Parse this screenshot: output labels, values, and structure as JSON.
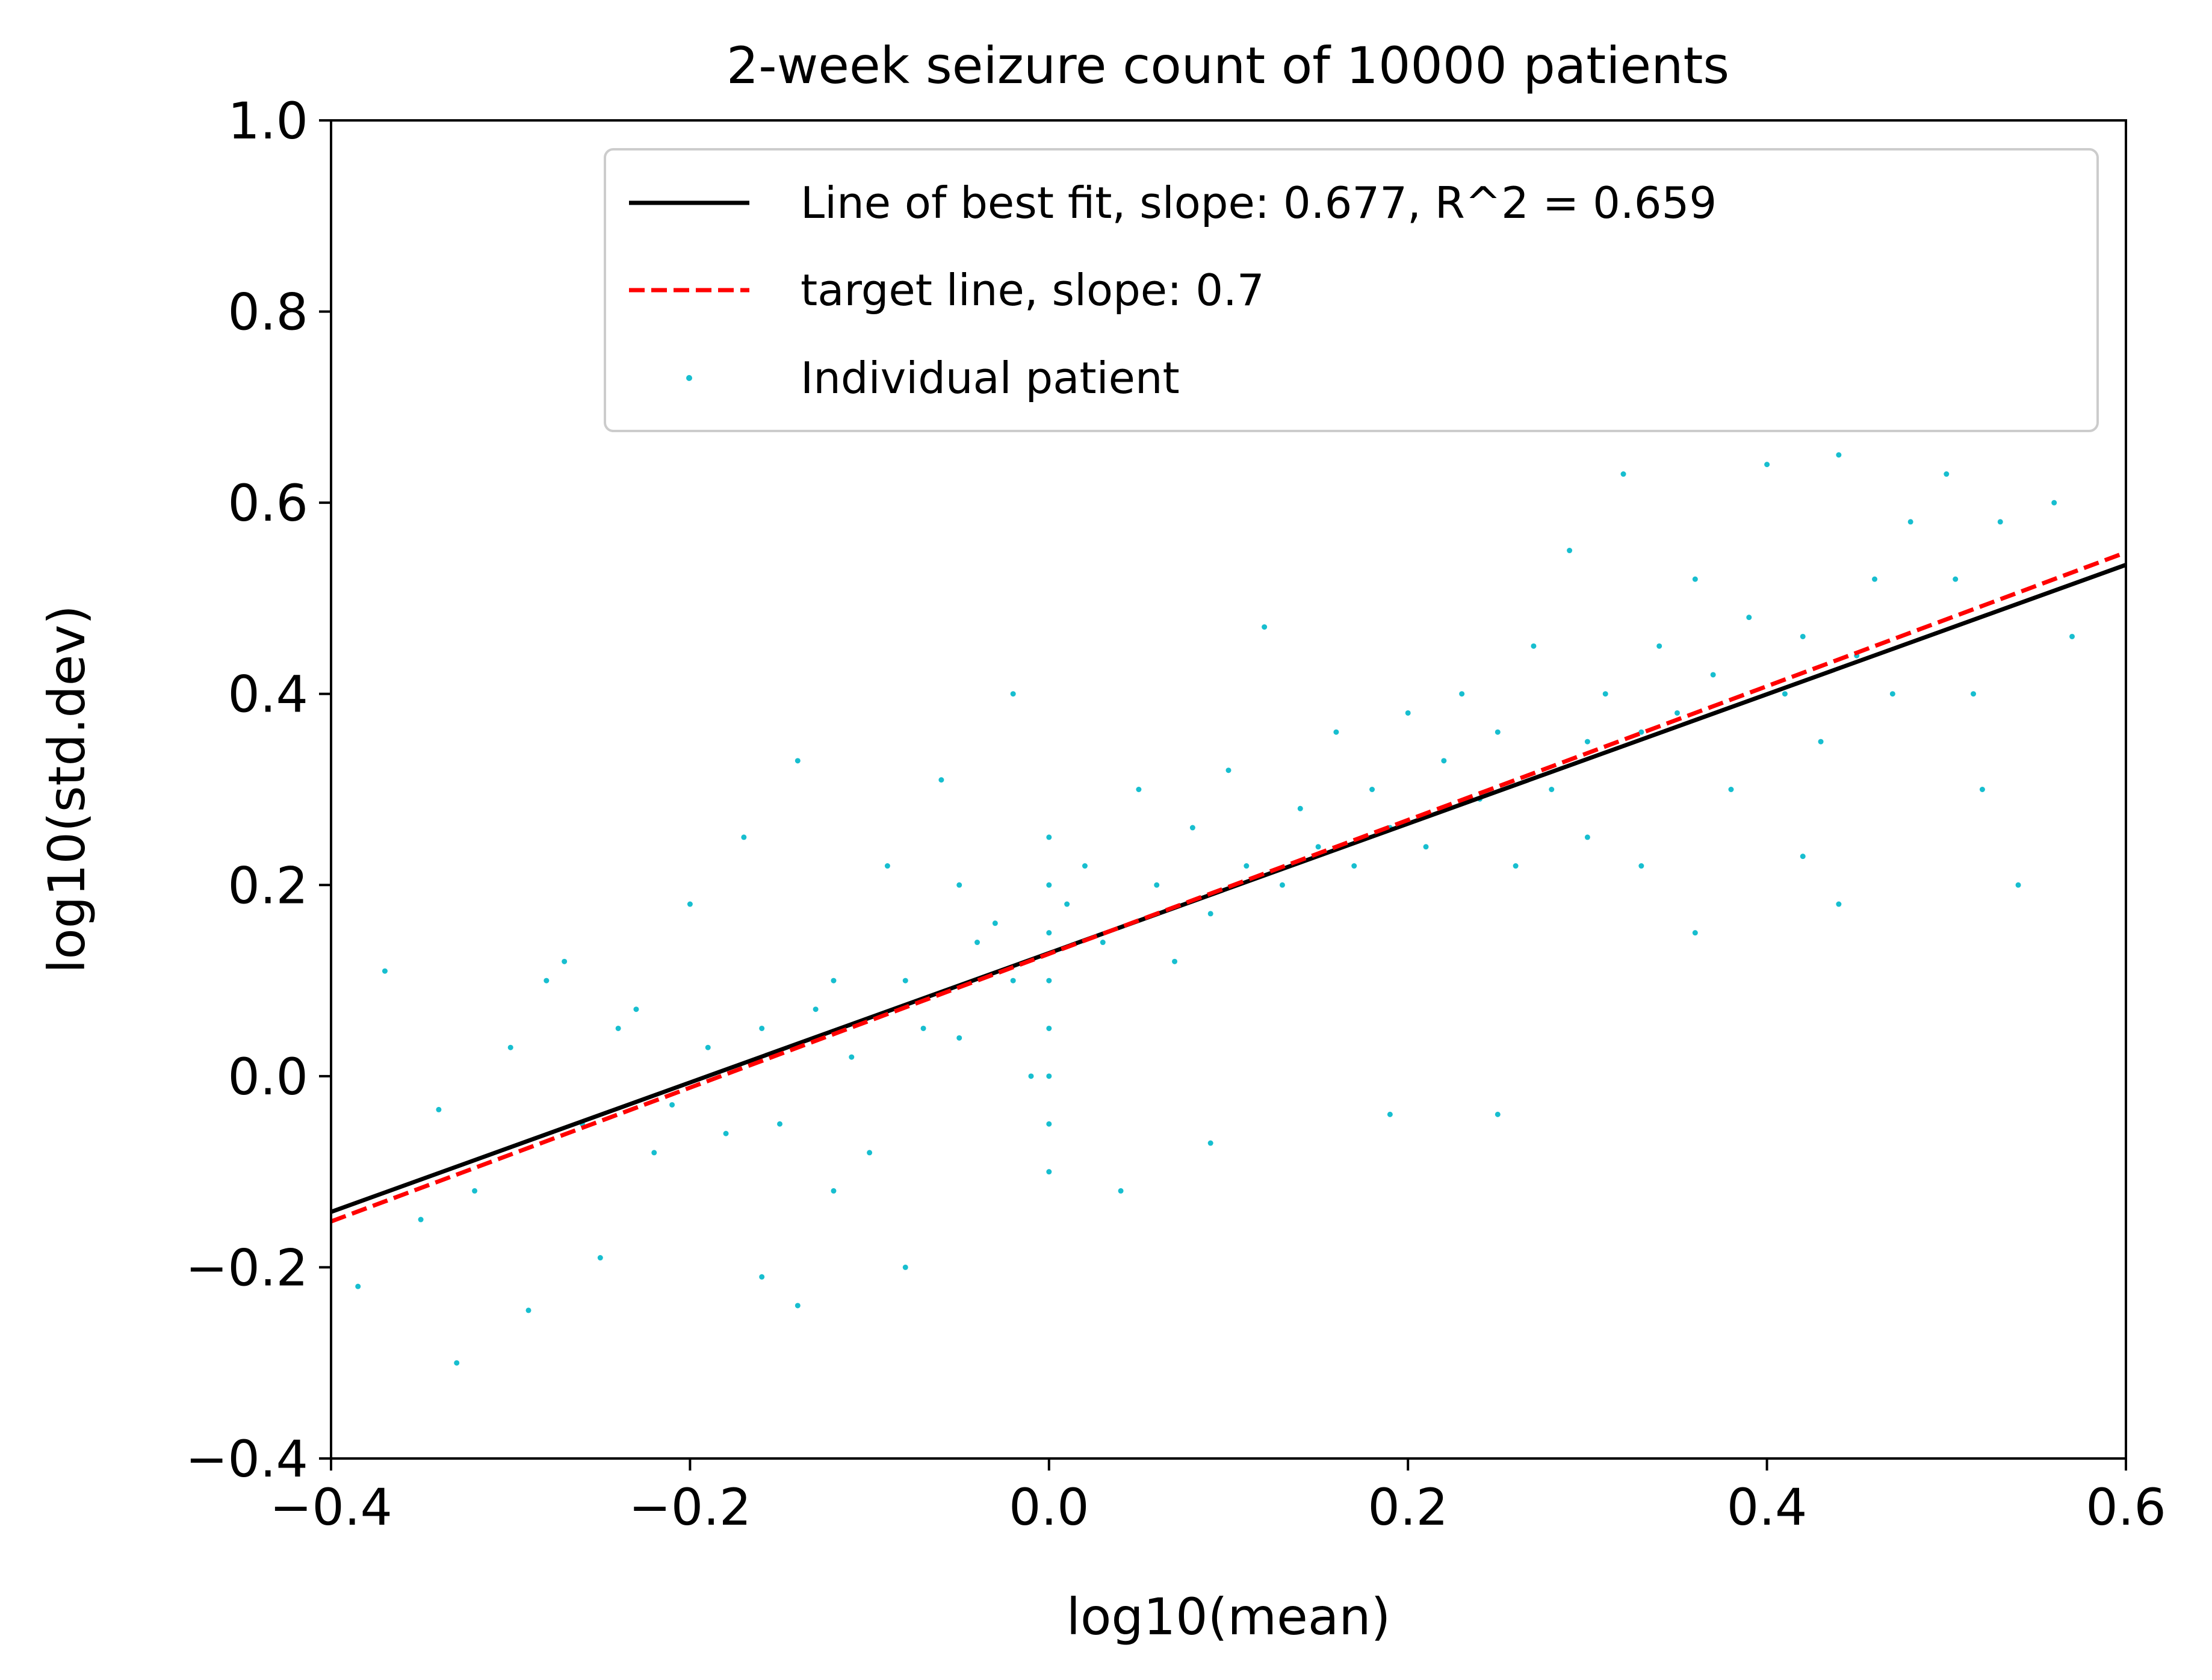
{
  "colors": {
    "scatter": "#17becf",
    "fit_line": "#000000",
    "target_line": "#ff0000",
    "axes": "#000000",
    "legend_border": "#cccccc"
  },
  "chart_data": {
    "type": "scatter",
    "title": "2-week seizure count of 10000 patients",
    "xlabel": "log10(mean)",
    "ylabel": "log10(std.dev)",
    "xlim": [
      -0.4,
      0.6
    ],
    "ylim": [
      -0.4,
      1.0
    ],
    "xticks": [
      -0.4,
      -0.2,
      0.0,
      0.2,
      0.4,
      0.6
    ],
    "yticks": [
      -0.4,
      -0.2,
      0.0,
      0.2,
      0.4,
      0.6,
      0.8,
      1.0
    ],
    "xtick_labels": [
      "−0.4",
      "−0.2",
      "0.0",
      "0.2",
      "0.4",
      "0.6"
    ],
    "ytick_labels": [
      "−0.4",
      "−0.2",
      "0.0",
      "0.2",
      "0.4",
      "0.6",
      "0.8",
      "1.0"
    ],
    "grid": false,
    "legend_position": "top-right",
    "series": [
      {
        "name": "Line of best fit, slope: 0.677, R^2 = 0.659",
        "kind": "line",
        "style": "solid",
        "slope": 0.677,
        "x": [
          -0.4,
          0.6
        ],
        "y": [
          -0.142,
          0.535
        ]
      },
      {
        "name": "target line, slope: 0.7",
        "kind": "line",
        "style": "dashed",
        "slope": 0.7,
        "x": [
          -0.4,
          0.6
        ],
        "y": [
          -0.152,
          0.548
        ]
      },
      {
        "name": "Individual patient",
        "kind": "scatter",
        "points": [
          [
            -0.37,
            0.11
          ],
          [
            -0.385,
            -0.22
          ],
          [
            -0.33,
            -0.3
          ],
          [
            -0.29,
            -0.245
          ],
          [
            -0.32,
            -0.12
          ],
          [
            -0.34,
            -0.035
          ],
          [
            -0.35,
            -0.15
          ],
          [
            -0.3,
            0.03
          ],
          [
            -0.28,
            0.1
          ],
          [
            -0.27,
            0.12
          ],
          [
            -0.26,
            -0.05
          ],
          [
            -0.25,
            -0.19
          ],
          [
            -0.24,
            0.05
          ],
          [
            -0.23,
            0.07
          ],
          [
            -0.22,
            -0.08
          ],
          [
            -0.21,
            -0.03
          ],
          [
            -0.2,
            0.18
          ],
          [
            -0.19,
            0.03
          ],
          [
            -0.18,
            -0.06
          ],
          [
            -0.17,
            0.25
          ],
          [
            -0.16,
            -0.21
          ],
          [
            -0.16,
            0.05
          ],
          [
            -0.15,
            -0.05
          ],
          [
            -0.14,
            0.33
          ],
          [
            -0.14,
            -0.24
          ],
          [
            -0.13,
            0.07
          ],
          [
            -0.12,
            -0.12
          ],
          [
            -0.12,
            0.1
          ],
          [
            -0.11,
            0.02
          ],
          [
            -0.1,
            -0.08
          ],
          [
            -0.09,
            0.22
          ],
          [
            -0.08,
            0.1
          ],
          [
            -0.08,
            -0.2
          ],
          [
            -0.07,
            0.05
          ],
          [
            -0.06,
            0.31
          ],
          [
            -0.05,
            0.2
          ],
          [
            -0.05,
            0.04
          ],
          [
            -0.04,
            0.14
          ],
          [
            -0.03,
            0.16
          ],
          [
            -0.02,
            0.4
          ],
          [
            -0.02,
            0.1
          ],
          [
            -0.01,
            0.0
          ],
          [
            0.0,
            0.25
          ],
          [
            0.0,
            0.2
          ],
          [
            0.0,
            0.15
          ],
          [
            0.0,
            0.1
          ],
          [
            0.0,
            0.05
          ],
          [
            0.0,
            0.0
          ],
          [
            0.0,
            -0.05
          ],
          [
            0.0,
            -0.1
          ],
          [
            0.01,
            0.18
          ],
          [
            0.02,
            0.22
          ],
          [
            0.03,
            0.14
          ],
          [
            0.04,
            -0.12
          ],
          [
            0.05,
            0.3
          ],
          [
            0.06,
            0.2
          ],
          [
            0.07,
            0.12
          ],
          [
            0.08,
            0.26
          ],
          [
            0.09,
            0.17
          ],
          [
            0.1,
            0.32
          ],
          [
            0.11,
            0.22
          ],
          [
            0.12,
            0.47
          ],
          [
            0.13,
            0.2
          ],
          [
            0.14,
            0.28
          ],
          [
            0.15,
            0.24
          ],
          [
            0.16,
            0.36
          ],
          [
            0.17,
            0.22
          ],
          [
            0.18,
            0.3
          ],
          [
            0.19,
            0.26
          ],
          [
            0.2,
            0.38
          ],
          [
            0.21,
            0.24
          ],
          [
            0.22,
            0.33
          ],
          [
            0.23,
            0.4
          ],
          [
            0.24,
            0.29
          ],
          [
            0.25,
            0.36
          ],
          [
            0.26,
            0.22
          ],
          [
            0.27,
            0.45
          ],
          [
            0.28,
            0.3
          ],
          [
            0.29,
            0.55
          ],
          [
            0.3,
            0.35
          ],
          [
            0.3,
            0.25
          ],
          [
            0.31,
            0.4
          ],
          [
            0.32,
            0.63
          ],
          [
            0.33,
            0.36
          ],
          [
            0.34,
            0.45
          ],
          [
            0.35,
            0.38
          ],
          [
            0.36,
            0.52
          ],
          [
            0.37,
            0.42
          ],
          [
            0.38,
            0.3
          ],
          [
            0.39,
            0.48
          ],
          [
            0.4,
            0.64
          ],
          [
            0.41,
            0.4
          ],
          [
            0.42,
            0.46
          ],
          [
            0.43,
            0.35
          ],
          [
            0.44,
            0.65
          ],
          [
            0.45,
            0.44
          ],
          [
            0.46,
            0.52
          ],
          [
            0.48,
            0.58
          ],
          [
            0.5,
            0.63
          ],
          [
            0.52,
            0.3
          ],
          [
            0.53,
            0.58
          ],
          [
            0.54,
            0.2
          ],
          [
            0.56,
            0.6
          ],
          [
            0.57,
            0.46
          ],
          [
            0.44,
            0.18
          ],
          [
            0.09,
            -0.07
          ],
          [
            0.19,
            -0.04
          ],
          [
            0.25,
            -0.04
          ],
          [
            0.33,
            0.22
          ],
          [
            0.36,
            0.15
          ],
          [
            0.42,
            0.23
          ],
          [
            0.47,
            0.4
          ],
          [
            0.505,
            0.52
          ],
          [
            0.515,
            0.4
          ]
        ]
      }
    ]
  }
}
